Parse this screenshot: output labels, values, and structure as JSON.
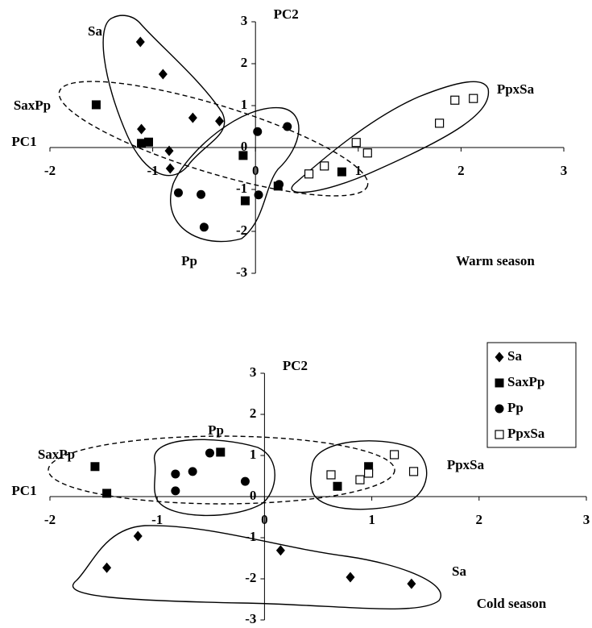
{
  "chart_data": [
    {
      "type": "scatter",
      "title": "Warm season",
      "x_label": "PC1",
      "y_label": "PC2",
      "xlim": [
        -2,
        3
      ],
      "ylim": [
        -3,
        3
      ],
      "xticks": [
        -2,
        -1,
        0,
        1,
        2,
        3
      ],
      "yticks": [
        -3,
        -2,
        -1,
        0,
        1,
        2,
        3
      ],
      "legend": false,
      "series": [
        {
          "name": "Sa",
          "color": "#000000",
          "marker": "diamond",
          "x": [
            -1.12,
            -0.9,
            -0.61,
            -0.35,
            -1.11,
            -0.84,
            -0.83
          ],
          "values": [
            2.52,
            1.75,
            0.71,
            0.63,
            0.44,
            -0.08,
            -0.5
          ]
        },
        {
          "name": "SaxPp",
          "color": "#000000",
          "marker": "square",
          "x": [
            -1.55,
            -1.11,
            -1.04,
            -0.12,
            -0.1,
            0.22,
            0.84
          ],
          "values": [
            1.02,
            0.1,
            0.13,
            -0.19,
            -1.27,
            -0.92,
            -0.58
          ]
        },
        {
          "name": "Pp",
          "color": "#000000",
          "marker": "circle",
          "x": [
            0.02,
            0.31,
            -0.75,
            -0.53,
            0.03,
            0.23,
            -0.5
          ],
          "values": [
            0.38,
            0.5,
            -1.08,
            -1.12,
            -1.13,
            -0.88,
            -1.9
          ]
        },
        {
          "name": "PpxSa",
          "color": "#000000",
          "marker": "open-square",
          "x": [
            0.52,
            0.67,
            0.98,
            1.09,
            1.79,
            1.94,
            2.12
          ],
          "values": [
            -0.63,
            -0.44,
            0.12,
            -0.13,
            0.58,
            1.13,
            1.17
          ]
        }
      ]
    },
    {
      "type": "scatter",
      "title": "Cold season",
      "x_label": "PC1",
      "y_label": "PC2",
      "xlim": [
        -2,
        3
      ],
      "ylim": [
        -3,
        3
      ],
      "xticks": [
        -2,
        -1,
        0,
        1,
        2,
        3
      ],
      "yticks": [
        -3,
        -2,
        -1,
        0,
        1,
        2,
        3
      ],
      "legend": "upper right",
      "series": [
        {
          "name": "Sa",
          "color": "#000000",
          "marker": "diamond",
          "x": [
            -1.18,
            -1.47,
            0.15,
            0.8,
            1.37
          ],
          "values": [
            -0.96,
            -1.73,
            -1.31,
            -1.96,
            -2.12
          ]
        },
        {
          "name": "SaxPp",
          "color": "#000000",
          "marker": "square",
          "x": [
            -1.58,
            -1.47,
            -0.41,
            0.68,
            0.97
          ],
          "values": [
            0.73,
            0.08,
            1.08,
            0.25,
            0.73
          ]
        },
        {
          "name": "Pp",
          "color": "#000000",
          "marker": "circle",
          "x": [
            -0.83,
            -0.83,
            -0.67,
            -0.51,
            -0.18
          ],
          "values": [
            0.55,
            0.14,
            0.61,
            1.06,
            0.37
          ]
        },
        {
          "name": "PpxSa",
          "color": "#000000",
          "marker": "open-square",
          "x": [
            0.62,
            0.89,
            0.97,
            1.21,
            1.39
          ],
          "values": [
            0.53,
            0.41,
            0.57,
            1.02,
            0.61
          ]
        }
      ]
    }
  ]
}
